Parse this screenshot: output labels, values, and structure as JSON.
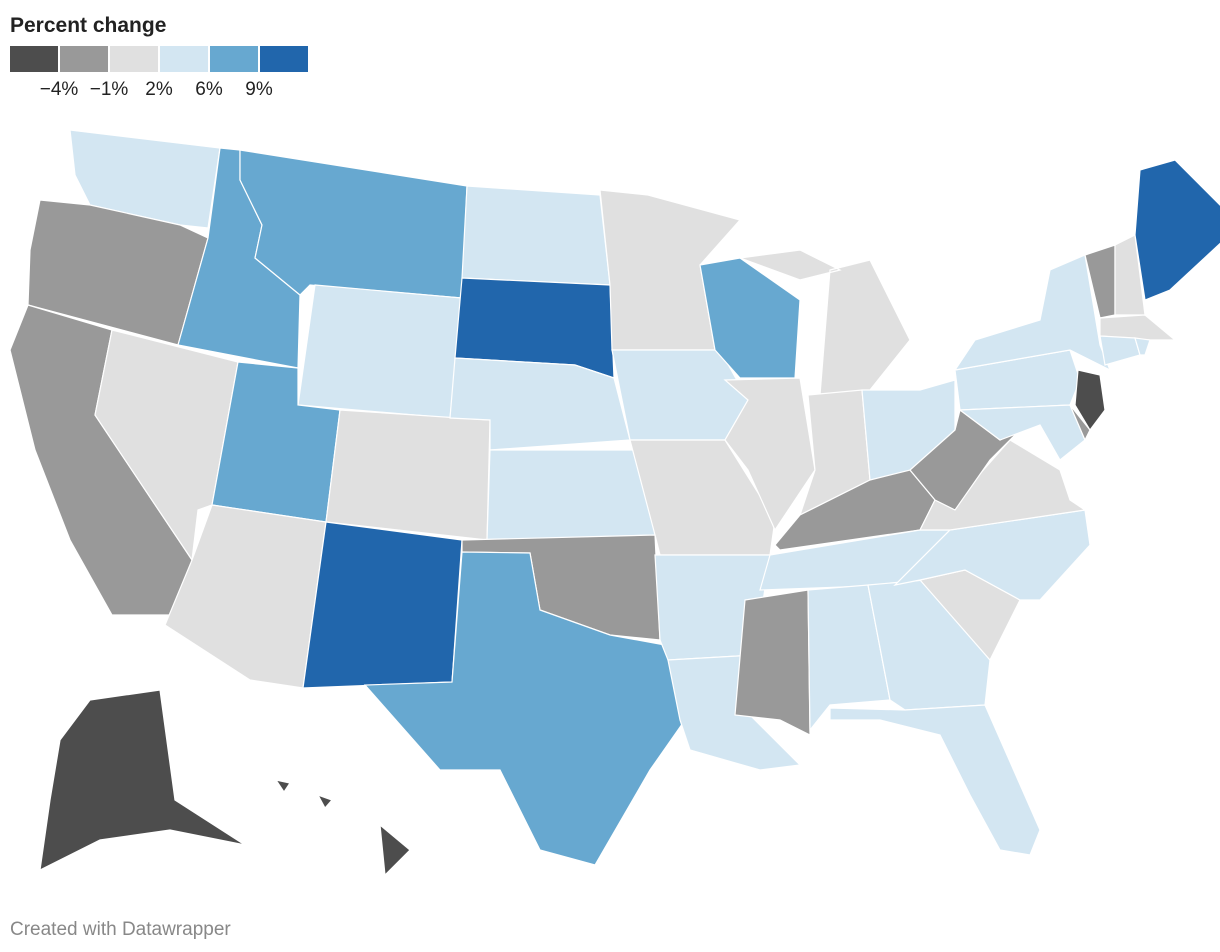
{
  "chart_data": {
    "type": "choropleth",
    "title": "Percent change",
    "colors": [
      "#4d4d4d",
      "#999999",
      "#e0e0e0",
      "#d3e6f2",
      "#67a8d0",
      "#2166ac"
    ],
    "ticks": [
      {
        "value": -4,
        "label": "−4%"
      },
      {
        "value": -1,
        "label": "−1%"
      },
      {
        "value": 2,
        "label": "2%"
      },
      {
        "value": 6,
        "label": "6%"
      },
      {
        "value": 9,
        "label": "9%"
      }
    ],
    "values": [
      4,
      -2.5,
      -2.5,
      0.5,
      7.5,
      7.5,
      4,
      7.5,
      0.5,
      0.5,
      10.5,
      4,
      10.5,
      4,
      4,
      -2.5,
      7.5,
      0.5,
      4,
      0.5,
      4,
      4,
      7.5,
      0.5,
      0.5,
      0.5,
      4,
      -2.5,
      4,
      -2.5,
      4,
      4,
      4,
      0.5,
      4,
      0.5,
      -2.5,
      4,
      4,
      4,
      -2.5,
      -5,
      -2.5,
      0.5,
      10.5,
      0.5,
      4,
      4,
      -5,
      -5
    ]
  },
  "footer": "Created with Datawrapper"
}
